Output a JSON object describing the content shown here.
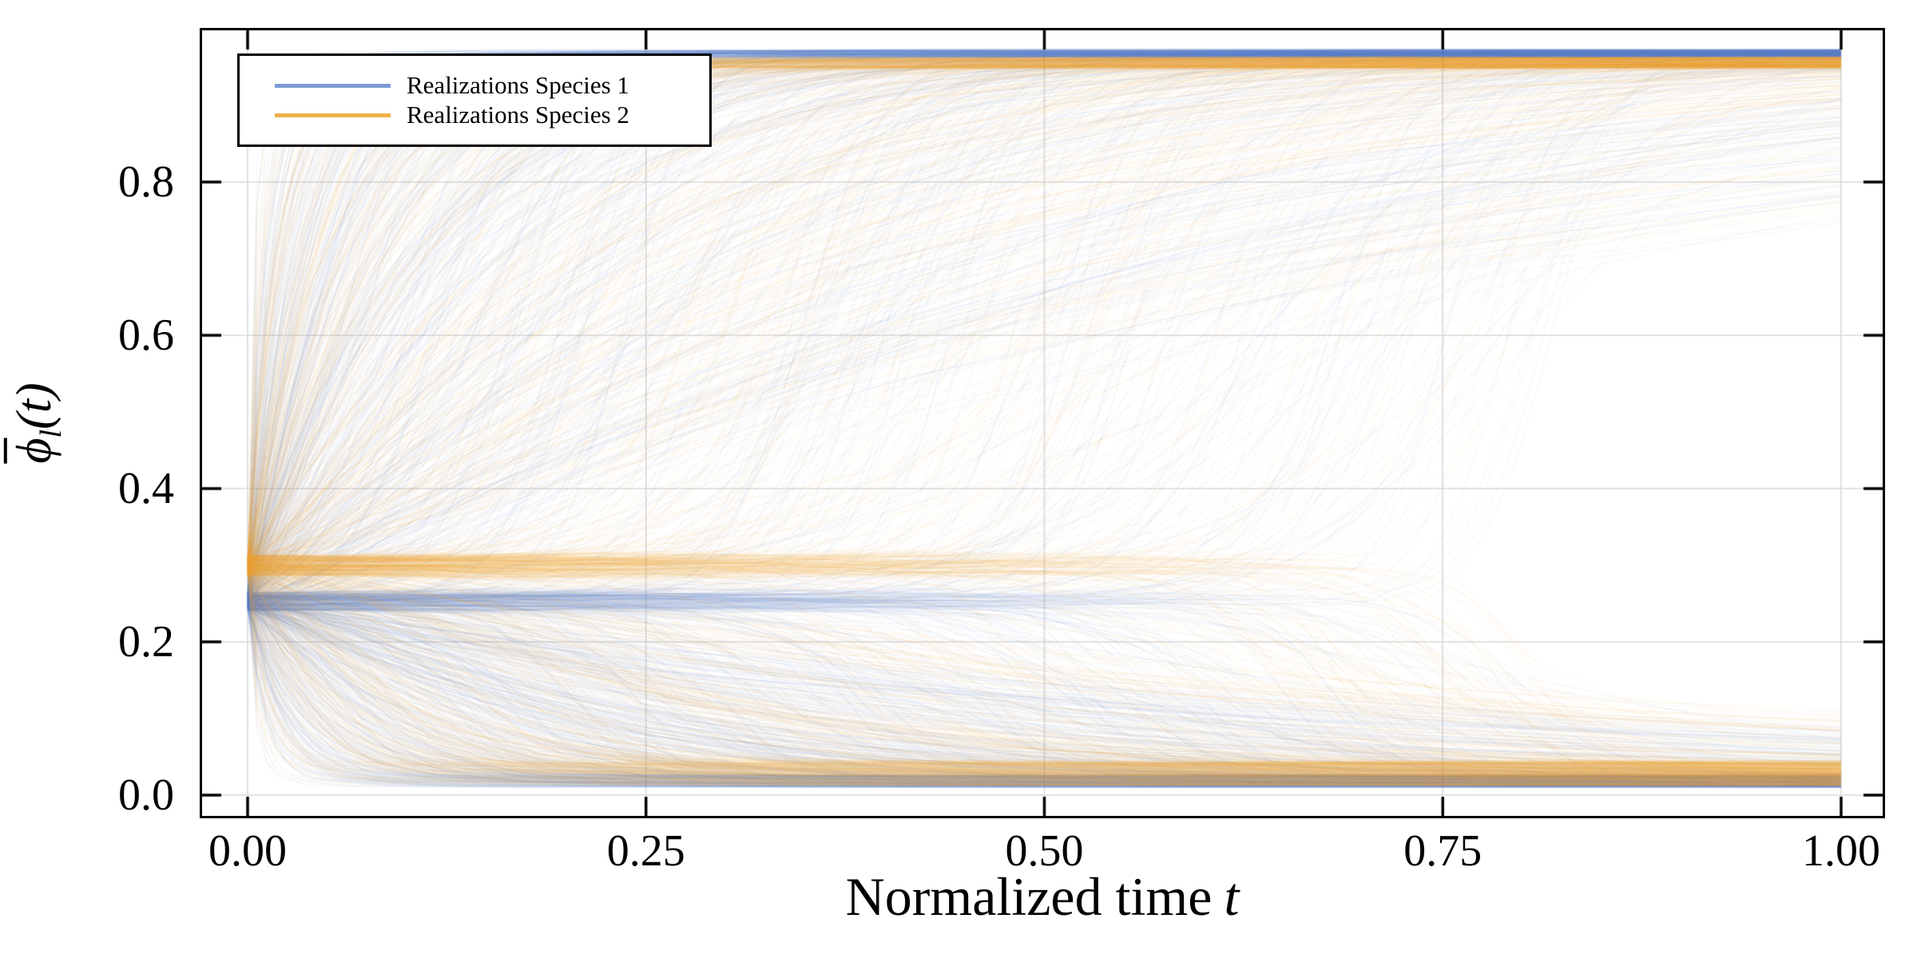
{
  "figure": {
    "xlabel": {
      "prefix": "Normalized time",
      "symbol": "t"
    },
    "ylabel": {
      "base": "ϕ",
      "subscript": "l",
      "suffix": "(t)"
    }
  },
  "chart_data": {
    "type": "line",
    "subtype": "stochastic-trajectory-ensemble",
    "title": "",
    "xlabel": "Normalized time t",
    "ylabel": "phi-bar_l(t)",
    "xlim": [
      -0.03,
      1.03
    ],
    "ylim": [
      -0.03,
      1.0
    ],
    "grid": true,
    "grid_color": "#d9d9d9",
    "spine_color": "#000000",
    "tick_color": "#000000",
    "tick_direction": "in",
    "legend_position": "upper left",
    "x_ticks": [
      {
        "t": 0.0,
        "label": "0.00"
      },
      {
        "t": 0.25,
        "label": "0.25"
      },
      {
        "t": 0.5,
        "label": "0.50"
      },
      {
        "t": 0.75,
        "label": "0.75"
      },
      {
        "t": 1.0,
        "label": "1.00"
      }
    ],
    "y_ticks": [
      {
        "v": 0.0,
        "label": "0.0"
      },
      {
        "v": 0.2,
        "label": "0.2"
      },
      {
        "v": 0.4,
        "label": "0.4"
      },
      {
        "v": 0.6,
        "label": "0.6"
      },
      {
        "v": 0.8,
        "label": "0.8"
      }
    ],
    "line_alpha": 0.055,
    "line_width": 1.3,
    "seed": 1337,
    "series": [
      {
        "name": "Realizations Species 1",
        "color": "#5b82c8",
        "legend_color": "#7d9bd4",
        "n_realizations": 1100,
        "initial_value": 0.253,
        "initial_spread": 0.012,
        "fraction_to_upper": 0.5,
        "upper_attractor": 0.968,
        "upper_spread": 0.005,
        "lower_attractor": 0.018,
        "lower_spread": 0.008
      },
      {
        "name": "Realizations Species 2",
        "color": "#eea63c",
        "legend_color": "#eeb14a",
        "n_realizations": 1100,
        "initial_value": 0.3,
        "initial_spread": 0.013,
        "fraction_to_upper": 0.5,
        "upper_attractor": 0.956,
        "upper_spread": 0.007,
        "lower_attractor": 0.028,
        "lower_spread": 0.016
      }
    ]
  }
}
